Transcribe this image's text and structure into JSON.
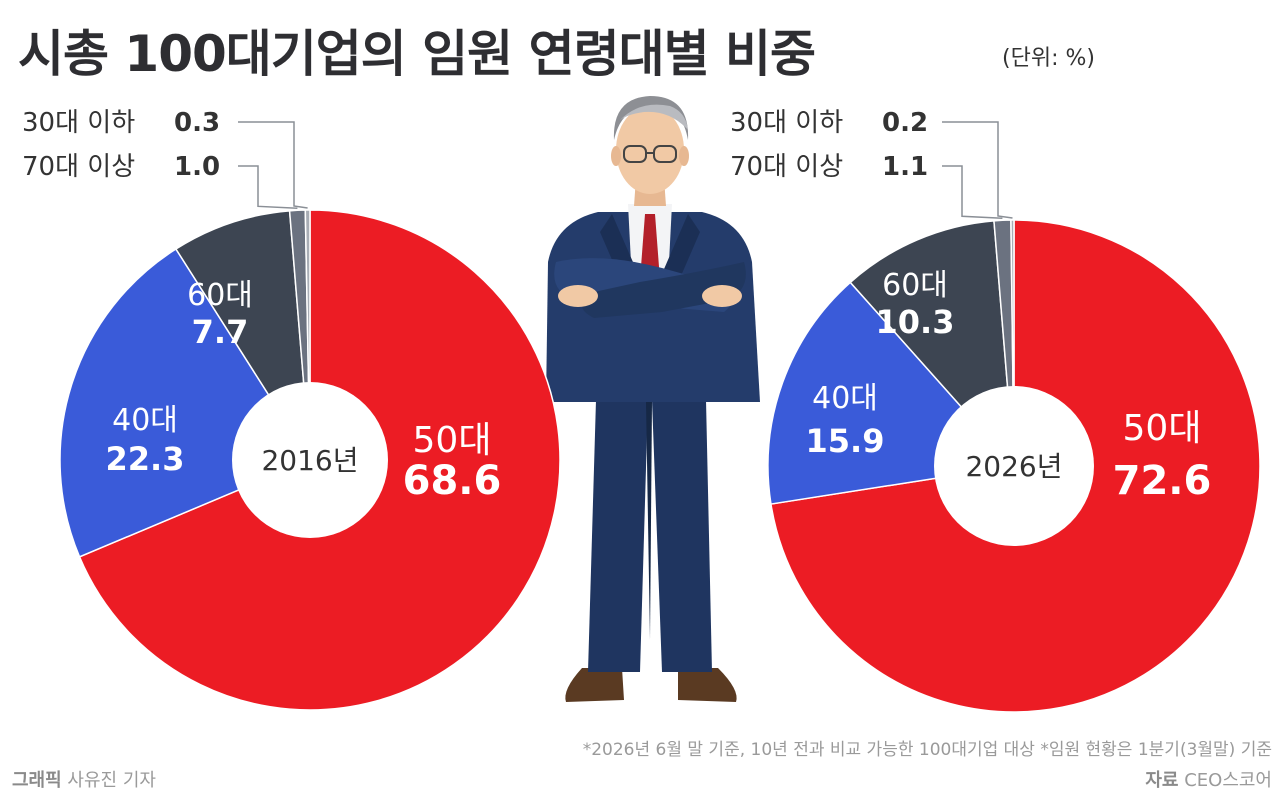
{
  "title": "시총 100대기업의 임원 연령대별 비중",
  "unit": "(단위: %)",
  "footnote": "*2026년 6월 말 기준, 10년 전과 비교 가능한 100대기업 대상  *임원 현황은 1분기(3월말) 기준",
  "credit": {
    "label": "그래픽",
    "name": "사유진 기자"
  },
  "source": {
    "label": "자료",
    "name": "CEO스코어"
  },
  "colors": {
    "50s": "#ec1c24",
    "40s": "#3a5bd9",
    "60s": "#3d4552",
    "70plus": "#6b7280",
    "30under": "#a8adb5"
  },
  "chart_data": [
    {
      "type": "pie",
      "center_label": "2016년",
      "slices": [
        {
          "category": "50대",
          "value": 68.6
        },
        {
          "category": "40대",
          "value": 22.3
        },
        {
          "category": "60대",
          "value": 7.7
        },
        {
          "category": "70대 이상",
          "value": 1.0
        },
        {
          "category": "30대 이하",
          "value": 0.3
        }
      ]
    },
    {
      "type": "pie",
      "center_label": "2026년",
      "slices": [
        {
          "category": "50대",
          "value": 72.6
        },
        {
          "category": "40대",
          "value": 15.9
        },
        {
          "category": "60대",
          "value": 10.3
        },
        {
          "category": "70대 이상",
          "value": 1.1
        },
        {
          "category": "30대 이하",
          "value": 0.2
        }
      ]
    }
  ]
}
